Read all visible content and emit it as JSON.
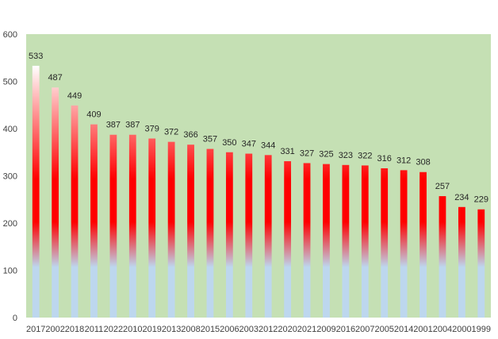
{
  "chart_data": {
    "type": "bar",
    "title": "",
    "xlabel": "",
    "ylabel": "",
    "ylim": [
      0,
      600
    ],
    "yticks": [
      0,
      100,
      200,
      300,
      400,
      500,
      600
    ],
    "grid": false,
    "legend": "none",
    "categories": [
      "2017",
      "2002",
      "2018",
      "2011",
      "2022",
      "2010",
      "2019",
      "2013",
      "2008",
      "2015",
      "2006",
      "2003",
      "2012",
      "2020",
      "2021",
      "2009",
      "2016",
      "2007",
      "2005",
      "2014",
      "2001",
      "2004",
      "2000",
      "1999"
    ],
    "values": [
      533,
      487,
      449,
      409,
      387,
      387,
      379,
      372,
      366,
      357,
      350,
      347,
      344,
      331,
      327,
      325,
      323,
      322,
      316,
      312,
      308,
      257,
      234,
      229
    ],
    "colors": {
      "plot_background": "#c5e0b4",
      "bar_top": "#ffffff",
      "bar_middle": "#ff0000",
      "bar_bottom": "#bdd7ee"
    }
  }
}
